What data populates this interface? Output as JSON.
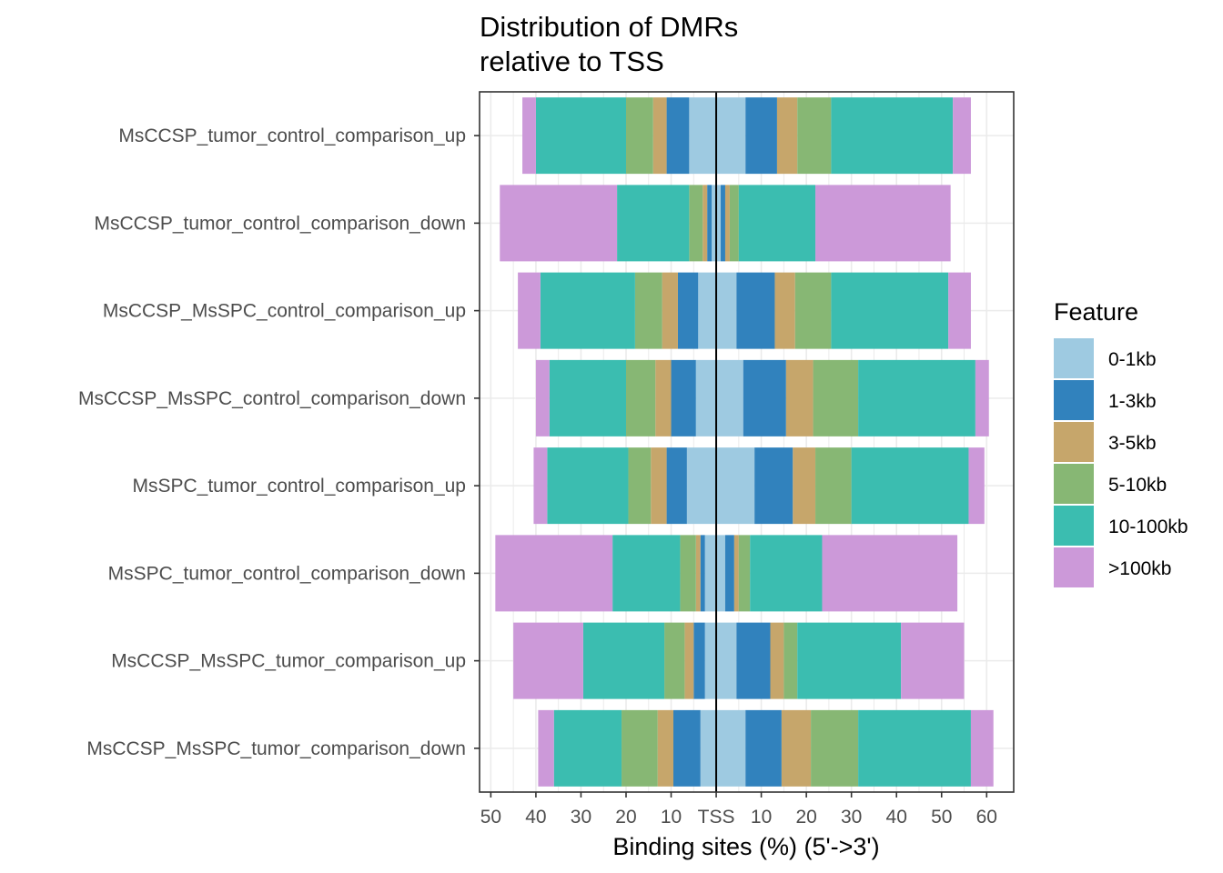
{
  "chart_data": {
    "type": "bar",
    "orientation": "horizontal-diverging",
    "title": [
      "Distribution of DMRs",
      "relative to TSS"
    ],
    "xlabel": "Binding sites (%) (5'->3')",
    "ylabel": "",
    "xlim": [
      -52.5,
      66
    ],
    "x_ticks": [
      -50,
      -40,
      -30,
      -20,
      -10,
      0,
      10,
      20,
      30,
      40,
      50,
      60
    ],
    "x_tick_labels": [
      "50",
      "40",
      "30",
      "20",
      "10",
      "TSS",
      "10",
      "20",
      "30",
      "40",
      "50",
      "60"
    ],
    "grid": true,
    "legend_position": "right",
    "legend_title": "Feature",
    "features": [
      "0-1kb",
      "1-3kb",
      "3-5kb",
      "5-10kb",
      "10-100kb",
      ">100kb"
    ],
    "colors": {
      "0-1kb": "#9ecae1",
      "1-3kb": "#3182bd",
      "3-5kb": "#c6a66b",
      "5-10kb": "#87b774",
      "10-100kb": "#3bbdb0",
      ">100kb": "#cc99d9"
    },
    "categories": [
      "MsCCSP_tumor_control_comparison_up",
      "MsCCSP_tumor_control_comparison_down",
      "MsCCSP_MsSPC_control_comparison_up",
      "MsCCSP_MsSPC_control_comparison_down",
      "MsSPC_tumor_control_comparison_up",
      "MsSPC_tumor_control_comparison_down",
      "MsCCSP_MsSPC_tumor_comparison_up",
      "MsCCSP_MsSPC_tumor_comparison_down"
    ],
    "upstream": [
      [
        6,
        5,
        3,
        6,
        20,
        3
      ],
      [
        1,
        1,
        1,
        3,
        16,
        26
      ],
      [
        4,
        4.5,
        3.5,
        6,
        21,
        5
      ],
      [
        4.5,
        5.5,
        3.5,
        6.5,
        17,
        3
      ],
      [
        6.5,
        4.5,
        3.5,
        5,
        18,
        3
      ],
      [
        2.5,
        1,
        1,
        3.5,
        15,
        26
      ],
      [
        2.5,
        2.5,
        2,
        4.5,
        18,
        15.5
      ],
      [
        3.5,
        6,
        3.5,
        8,
        15,
        3.5
      ]
    ],
    "downstream": [
      [
        6.5,
        7,
        4.5,
        7.5,
        27,
        4
      ],
      [
        1,
        1,
        1,
        2,
        17,
        30
      ],
      [
        4.5,
        8.5,
        4.5,
        8,
        26,
        5
      ],
      [
        6,
        9.5,
        6,
        10,
        26,
        3
      ],
      [
        8.5,
        8.5,
        5,
        8,
        26,
        3.5
      ],
      [
        2,
        2,
        1,
        2.5,
        16,
        30
      ],
      [
        4.5,
        7.5,
        3,
        3,
        23,
        14
      ],
      [
        6.5,
        8,
        6.5,
        10.5,
        25,
        5
      ]
    ]
  }
}
